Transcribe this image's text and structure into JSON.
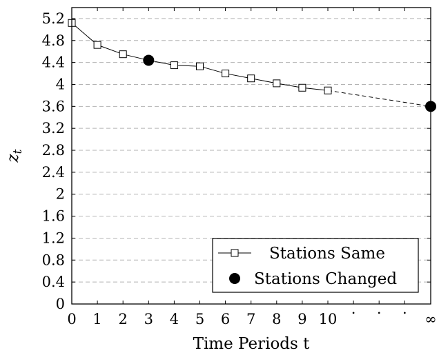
{
  "chart_data": {
    "type": "line",
    "xlabel": "Time Periods t",
    "ylabel": "z",
    "ylabel_subscript": "t",
    "ylim": [
      0,
      5.4
    ],
    "y_ticks": [
      "0",
      "0.4",
      "0.8",
      "1.2",
      "1.6",
      "2",
      "2.4",
      "2.8",
      "3.2",
      "3.6",
      "4",
      "4.4",
      "4.8",
      "5.2"
    ],
    "x_ticks": [
      "0",
      "1",
      "2",
      "3",
      "4",
      "5",
      "6",
      "7",
      "8",
      "9",
      "10",
      ".",
      ".",
      ".",
      "∞"
    ],
    "grid": "horizontal-dashed",
    "legend_placement": "bottom-right",
    "series": [
      {
        "name": "Stations Same",
        "marker": "square-open",
        "line": "solid",
        "points": [
          {
            "x": "0",
            "y": 5.12
          },
          {
            "x": "1",
            "y": 4.72
          },
          {
            "x": "2",
            "y": 4.55
          },
          {
            "x": "3",
            "y": 4.44
          },
          {
            "x": "4",
            "y": 4.35
          },
          {
            "x": "5",
            "y": 4.33
          },
          {
            "x": "6",
            "y": 4.2
          },
          {
            "x": "7",
            "y": 4.11
          },
          {
            "x": "8",
            "y": 4.02
          },
          {
            "x": "9",
            "y": 3.94
          },
          {
            "x": "10",
            "y": 3.89
          }
        ],
        "extension": {
          "x": "∞",
          "y": 3.6,
          "line": "dashed"
        }
      },
      {
        "name": "Stations Changed",
        "marker": "circle-filled",
        "line": "none",
        "points": [
          {
            "x": "3",
            "y": 4.44
          },
          {
            "x": "∞",
            "y": 3.6
          }
        ]
      }
    ]
  }
}
